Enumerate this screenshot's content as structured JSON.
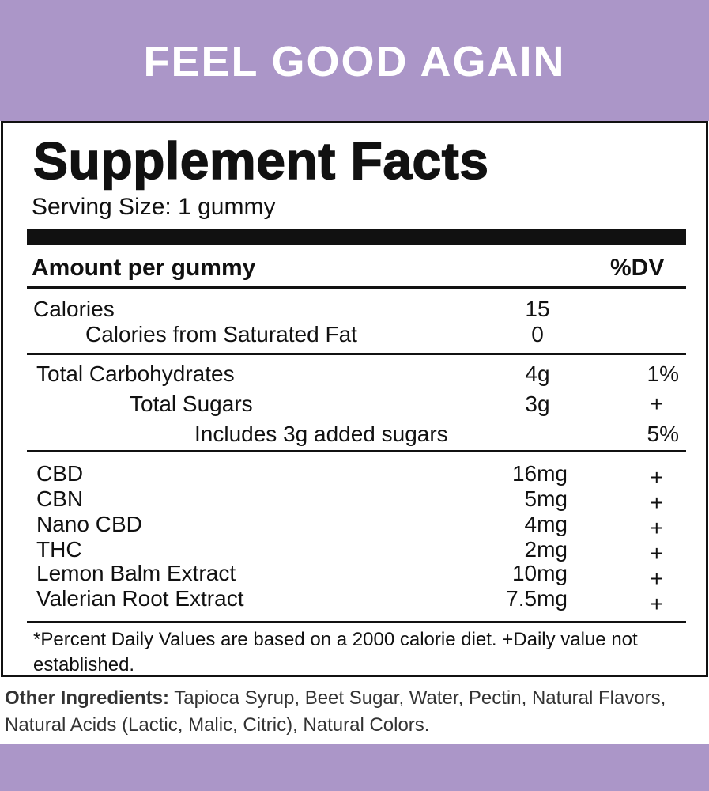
{
  "header": {
    "title": "FEEL GOOD AGAIN"
  },
  "facts": {
    "title": "Supplement Facts",
    "serving_size": "Serving Size: 1 gummy",
    "column_header": {
      "label": "Amount per gummy",
      "dv": "%DV"
    },
    "sections": [
      [
        {
          "name": "Calories",
          "amount": "15"
        },
        {
          "name": "Calories from Saturated Fat",
          "amount": "0"
        }
      ],
      [
        {
          "name": "Total Carbohydrates",
          "amount": "4g",
          "dv": "1%"
        },
        {
          "name": "Total Sugars",
          "amount": "3g",
          "dv": "+"
        },
        {
          "name": "Includes 3g added sugars",
          "dv": "5%"
        }
      ],
      [
        {
          "name": "CBD",
          "amount": "16mg",
          "dv": "+"
        },
        {
          "name": "CBN",
          "amount": "5mg",
          "dv": "+"
        },
        {
          "name": "Nano CBD",
          "amount": "4mg",
          "dv": "+"
        },
        {
          "name": "THC",
          "amount": "2mg",
          "dv": "+"
        },
        {
          "name": "Lemon Balm Extract",
          "amount": "10mg",
          "dv": "+"
        },
        {
          "name": "Valerian Root Extract",
          "amount": "7.5mg",
          "dv": "+"
        }
      ]
    ],
    "footnote": "*Percent Daily Values are based on a 2000 calorie diet. +Daily value not established."
  },
  "other_ingredients": {
    "label": "Other Ingredients:",
    "text": "Tapioca Syrup, Beet Sugar, Water, Pectin, Natural Flavors, Natural Acids (Lactic, Malic, Citric), Natural Colors."
  }
}
